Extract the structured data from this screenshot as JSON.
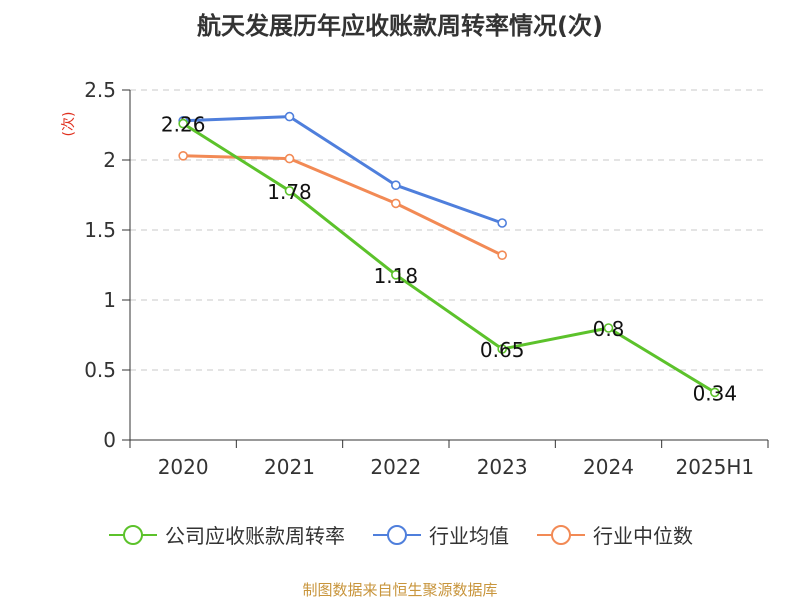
{
  "title": "航天发展历年应收账款周转率情况(次)",
  "source": "制图数据来自恒生聚源数据库",
  "chart_data": {
    "type": "line",
    "title": "航天发展历年应收账款周转率情况(次)",
    "categories": [
      "2020",
      "2021",
      "2022",
      "2023",
      "2024",
      "2025H1"
    ],
    "ylabel": "(次)",
    "ylim": [
      0,
      2.5
    ],
    "yticks": [
      "0",
      "0.5",
      "1",
      "1.5",
      "2",
      "2.5"
    ],
    "grid": true,
    "legend_position": "bottom",
    "series": [
      {
        "name": "公司应收账款周转率",
        "color": "#5cc22b",
        "values": [
          2.26,
          1.78,
          1.18,
          0.65,
          0.8,
          0.34
        ],
        "labels": [
          "2.26",
          "1.78",
          "1.18",
          "0.65",
          "0.8",
          "0.34"
        ]
      },
      {
        "name": "行业均值",
        "color": "#4f7fdc",
        "values": [
          2.28,
          2.31,
          1.82,
          1.55,
          null,
          null
        ]
      },
      {
        "name": "行业中位数",
        "color": "#f28a55",
        "values": [
          2.03,
          2.01,
          1.69,
          1.32,
          null,
          null
        ]
      }
    ]
  }
}
